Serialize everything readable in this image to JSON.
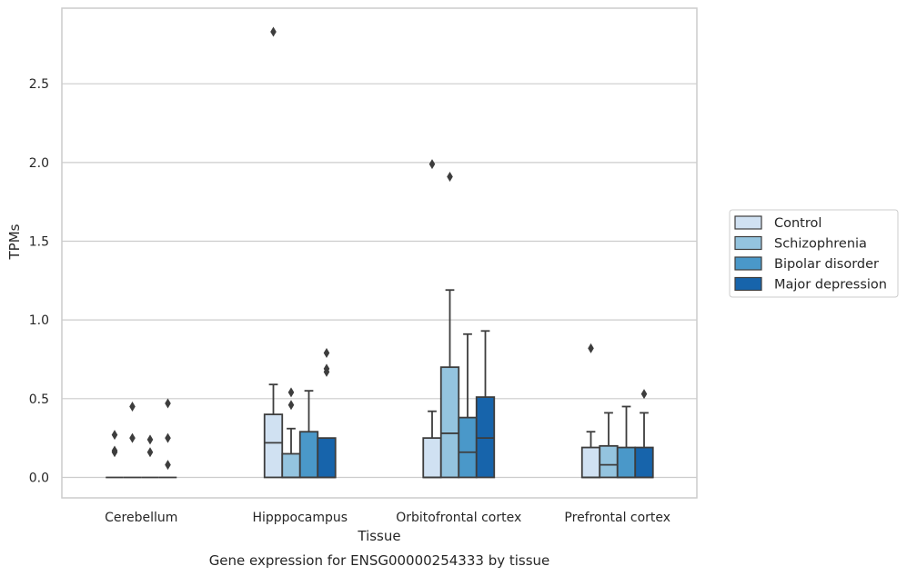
{
  "caption": "Gene expression for ENSG00000254333 by tissue",
  "chart_data": {
    "type": "box",
    "title": "",
    "xlabel": "Tissue",
    "ylabel": "TPMs",
    "ylim": [
      -0.13,
      2.98
    ],
    "yticks": [
      0.0,
      0.5,
      1.0,
      1.5,
      2.0,
      2.5
    ],
    "grid": "horizontal",
    "legend_position": "right",
    "categories": [
      "Cerebellum",
      "Hipppocampus",
      "Orbitofrontal cortex",
      "Prefrontal cortex"
    ],
    "series": [
      {
        "name": "Control",
        "color": "#d0e1f2",
        "boxes": [
          {
            "whislo": 0.0,
            "q1": 0.0,
            "med": 0.0,
            "q3": 0.0,
            "whishi": 0.0,
            "fliers": [
              0.16,
              0.17,
              0.27
            ]
          },
          {
            "whislo": 0.0,
            "q1": 0.0,
            "med": 0.22,
            "q3": 0.4,
            "whishi": 0.59,
            "fliers": [
              2.83
            ]
          },
          {
            "whislo": 0.0,
            "q1": 0.0,
            "med": 0.0,
            "q3": 0.25,
            "whishi": 0.42,
            "fliers": [
              1.99
            ]
          },
          {
            "whislo": 0.0,
            "q1": 0.0,
            "med": 0.0,
            "q3": 0.19,
            "whishi": 0.29,
            "fliers": [
              0.82
            ]
          }
        ]
      },
      {
        "name": "Schizophrenia",
        "color": "#94c4df",
        "boxes": [
          {
            "whislo": 0.0,
            "q1": 0.0,
            "med": 0.0,
            "q3": 0.0,
            "whishi": 0.0,
            "fliers": [
              0.25,
              0.45
            ]
          },
          {
            "whislo": 0.0,
            "q1": 0.0,
            "med": 0.0,
            "q3": 0.15,
            "whishi": 0.31,
            "fliers": [
              0.46,
              0.54
            ]
          },
          {
            "whislo": 0.0,
            "q1": 0.0,
            "med": 0.28,
            "q3": 0.7,
            "whishi": 1.19,
            "fliers": [
              1.91
            ]
          },
          {
            "whislo": 0.0,
            "q1": 0.0,
            "med": 0.08,
            "q3": 0.2,
            "whishi": 0.41,
            "fliers": []
          }
        ]
      },
      {
        "name": "Bipolar disorder",
        "color": "#4a98c9",
        "boxes": [
          {
            "whislo": 0.0,
            "q1": 0.0,
            "med": 0.0,
            "q3": 0.0,
            "whishi": 0.0,
            "fliers": [
              0.16,
              0.24
            ]
          },
          {
            "whislo": 0.0,
            "q1": 0.0,
            "med": 0.0,
            "q3": 0.29,
            "whishi": 0.55,
            "fliers": []
          },
          {
            "whislo": 0.0,
            "q1": 0.0,
            "med": 0.16,
            "q3": 0.38,
            "whishi": 0.91,
            "fliers": []
          },
          {
            "whislo": 0.0,
            "q1": 0.0,
            "med": 0.0,
            "q3": 0.19,
            "whishi": 0.45,
            "fliers": []
          }
        ]
      },
      {
        "name": "Major depression",
        "color": "#1764ab",
        "boxes": [
          {
            "whislo": 0.0,
            "q1": 0.0,
            "med": 0.0,
            "q3": 0.0,
            "whishi": 0.0,
            "fliers": [
              0.08,
              0.25,
              0.47
            ]
          },
          {
            "whislo": 0.0,
            "q1": 0.0,
            "med": 0.0,
            "q3": 0.25,
            "whishi": 0.25,
            "fliers": [
              0.67,
              0.69,
              0.79
            ]
          },
          {
            "whislo": 0.0,
            "q1": 0.0,
            "med": 0.25,
            "q3": 0.51,
            "whishi": 0.93,
            "fliers": []
          },
          {
            "whislo": 0.0,
            "q1": 0.0,
            "med": 0.0,
            "q3": 0.19,
            "whishi": 0.41,
            "fliers": [
              0.53
            ]
          }
        ]
      }
    ]
  }
}
